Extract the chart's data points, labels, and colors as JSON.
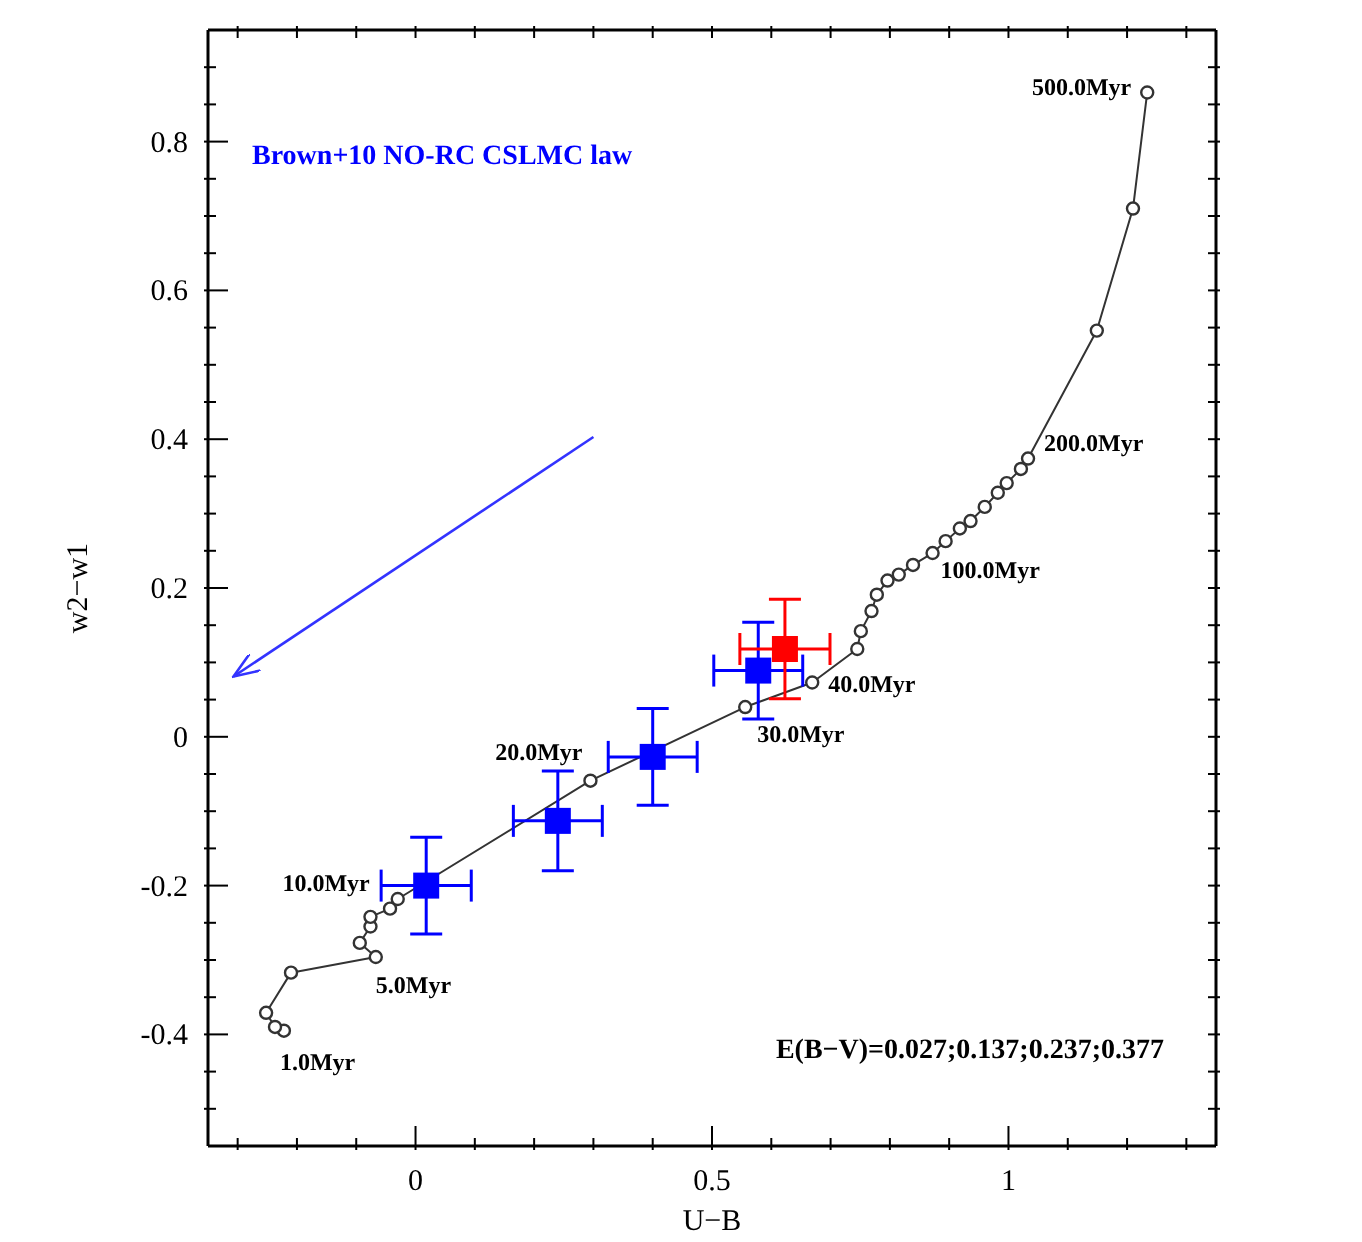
{
  "chart_data": {
    "type": "scatter",
    "xlabel": "U−B",
    "ylabel": "w2−w1",
    "xlim": [
      -0.35,
      1.35
    ],
    "ylim": [
      -0.55,
      0.95
    ],
    "xticks": [
      {
        "value": -0.3,
        "label": null
      },
      {
        "value": -0.2,
        "label": null
      },
      {
        "value": -0.1,
        "label": null
      },
      0,
      {
        "value": 0.1,
        "label": null
      },
      {
        "value": 0.2,
        "label": null
      },
      {
        "value": 0.3,
        "label": null
      },
      {
        "value": 0.4,
        "label": null
      },
      0.5,
      {
        "value": 0.6,
        "label": null
      },
      {
        "value": 0.7,
        "label": null
      },
      {
        "value": 0.8,
        "label": null
      },
      {
        "value": 0.9,
        "label": null
      },
      1,
      {
        "value": 1.1,
        "label": null
      },
      {
        "value": 1.2,
        "label": null
      },
      {
        "value": 1.3,
        "label": null
      }
    ],
    "yticks": [
      {
        "value": -0.5,
        "label": null
      },
      {
        "value": -0.45,
        "label": null
      },
      -0.4,
      {
        "value": -0.35,
        "label": null
      },
      {
        "value": -0.3,
        "label": null
      },
      {
        "value": -0.25,
        "label": null
      },
      -0.2,
      {
        "value": -0.15,
        "label": null
      },
      {
        "value": -0.1,
        "label": null
      },
      {
        "value": -0.05,
        "label": null
      },
      0,
      {
        "value": 0.05,
        "label": null
      },
      {
        "value": 0.1,
        "label": null
      },
      {
        "value": 0.15,
        "label": null
      },
      0.2,
      {
        "value": 0.25,
        "label": null
      },
      {
        "value": 0.3,
        "label": null
      },
      {
        "value": 0.35,
        "label": null
      },
      0.4,
      {
        "value": 0.45,
        "label": null
      },
      {
        "value": 0.5,
        "label": null
      },
      {
        "value": 0.55,
        "label": null
      },
      0.6,
      {
        "value": 0.65,
        "label": null
      },
      {
        "value": 0.7,
        "label": null
      },
      {
        "value": 0.75,
        "label": null
      },
      0.8,
      {
        "value": 0.85,
        "label": null
      },
      {
        "value": 0.9,
        "label": null
      }
    ],
    "series": [
      {
        "type": "line",
        "color": "#333333",
        "marker": "circle",
        "x": [
          -0.222,
          -0.237,
          -0.252,
          -0.21,
          -0.067,
          -0.094,
          -0.076,
          -0.076,
          -0.043,
          -0.03,
          0.295,
          0.556,
          0.669,
          0.745,
          0.751,
          0.769,
          0.778,
          0.796,
          0.815,
          0.839,
          0.872,
          0.894,
          0.918,
          0.936,
          0.96,
          0.982,
          0.997,
          1.021,
          1.033,
          1.149,
          1.21,
          1.234
        ],
        "values": [
          -0.395,
          -0.39,
          -0.371,
          -0.317,
          -0.296,
          -0.277,
          -0.255,
          -0.242,
          -0.231,
          -0.218,
          -0.059,
          0.04,
          0.073,
          0.118,
          0.142,
          0.169,
          0.191,
          0.21,
          0.218,
          0.231,
          0.247,
          0.263,
          0.28,
          0.29,
          0.309,
          0.328,
          0.341,
          0.36,
          0.374,
          0.546,
          0.71,
          0.866
        ]
      },
      {
        "type": "scatter",
        "color": "#0000ff",
        "marker": "square",
        "x": [
          0.018,
          0.24,
          0.4,
          0.578
        ],
        "values": [
          -0.2,
          -0.113,
          -0.027,
          0.089
        ],
        "errors": [
          0.065,
          0.067,
          0.065,
          0.065
        ],
        "xerrors": [
          0.076,
          0.075,
          0.075,
          0.075
        ]
      },
      {
        "type": "scatter",
        "color": "#ff0000",
        "marker": "square",
        "x": [
          0.623
        ],
        "values": [
          0.118
        ],
        "errors": [
          0.067
        ],
        "xerrors": [
          0.076
        ]
      },
      {
        "type": "line",
        "color": "#3333ff",
        "marker": "none",
        "x": [
          0.3,
          -0.307
        ],
        "values": [
          0.403,
          0.081
        ]
      }
    ],
    "annotations": [
      {
        "text": "1.0Myr",
        "x": -0.222,
        "y": -0.395
      },
      {
        "text": "5.0Myr",
        "x": -0.067,
        "y": -0.296
      },
      {
        "text": "10.0Myr",
        "x": -0.03,
        "y": -0.218
      },
      {
        "text": "20.0Myr",
        "x": 0.295,
        "y": -0.059
      },
      {
        "text": "30.0Myr",
        "x": 0.556,
        "y": 0.04
      },
      {
        "text": "40.0Myr",
        "x": 0.669,
        "y": 0.073
      },
      {
        "text": "100.0Myr",
        "x": 0.872,
        "y": 0.247
      },
      {
        "text": "200.0Myr",
        "x": 1.033,
        "y": 0.374
      },
      {
        "text": "500.0Myr",
        "x": 1.234,
        "y": 0.866
      },
      "Brown+10 NO-RC CSLMC law",
      "E(B−V)=0.027;0.137;0.237;0.377"
    ]
  }
}
